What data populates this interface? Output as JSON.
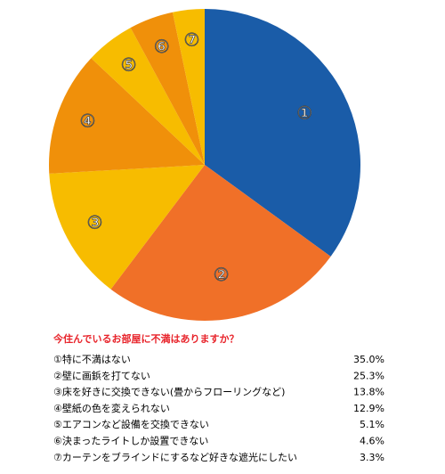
{
  "chart_data": {
    "type": "pie",
    "title": "今住んでいるお部屋に不満はありますか？",
    "markers": [
      "①",
      "②",
      "③",
      "④",
      "⑤",
      "⑥",
      "⑦"
    ],
    "categories": [
      "①特に不満はない",
      "②壁に画鋲を打てない",
      "③床を好きに交換できない(畳からフローリングなど)",
      "④壁紙の色を変えられない",
      "⑤エアコンなど設備を交換できない",
      "⑥決まったライトしか設置できない",
      "⑦カーテンをブラインドにするなど好きな遮光にしたい"
    ],
    "values": [
      35.0,
      25.3,
      13.8,
      12.9,
      5.1,
      4.6,
      3.3
    ],
    "value_labels": [
      "35.0%",
      "25.3%",
      "13.8%",
      "12.9%",
      "5.1%",
      "4.6%",
      "3.3%"
    ],
    "colors": [
      "#1a5ca8",
      "#f07028",
      "#f7bc00",
      "#f0900a",
      "#f7bc00",
      "#f0900a",
      "#f7bc00"
    ]
  }
}
